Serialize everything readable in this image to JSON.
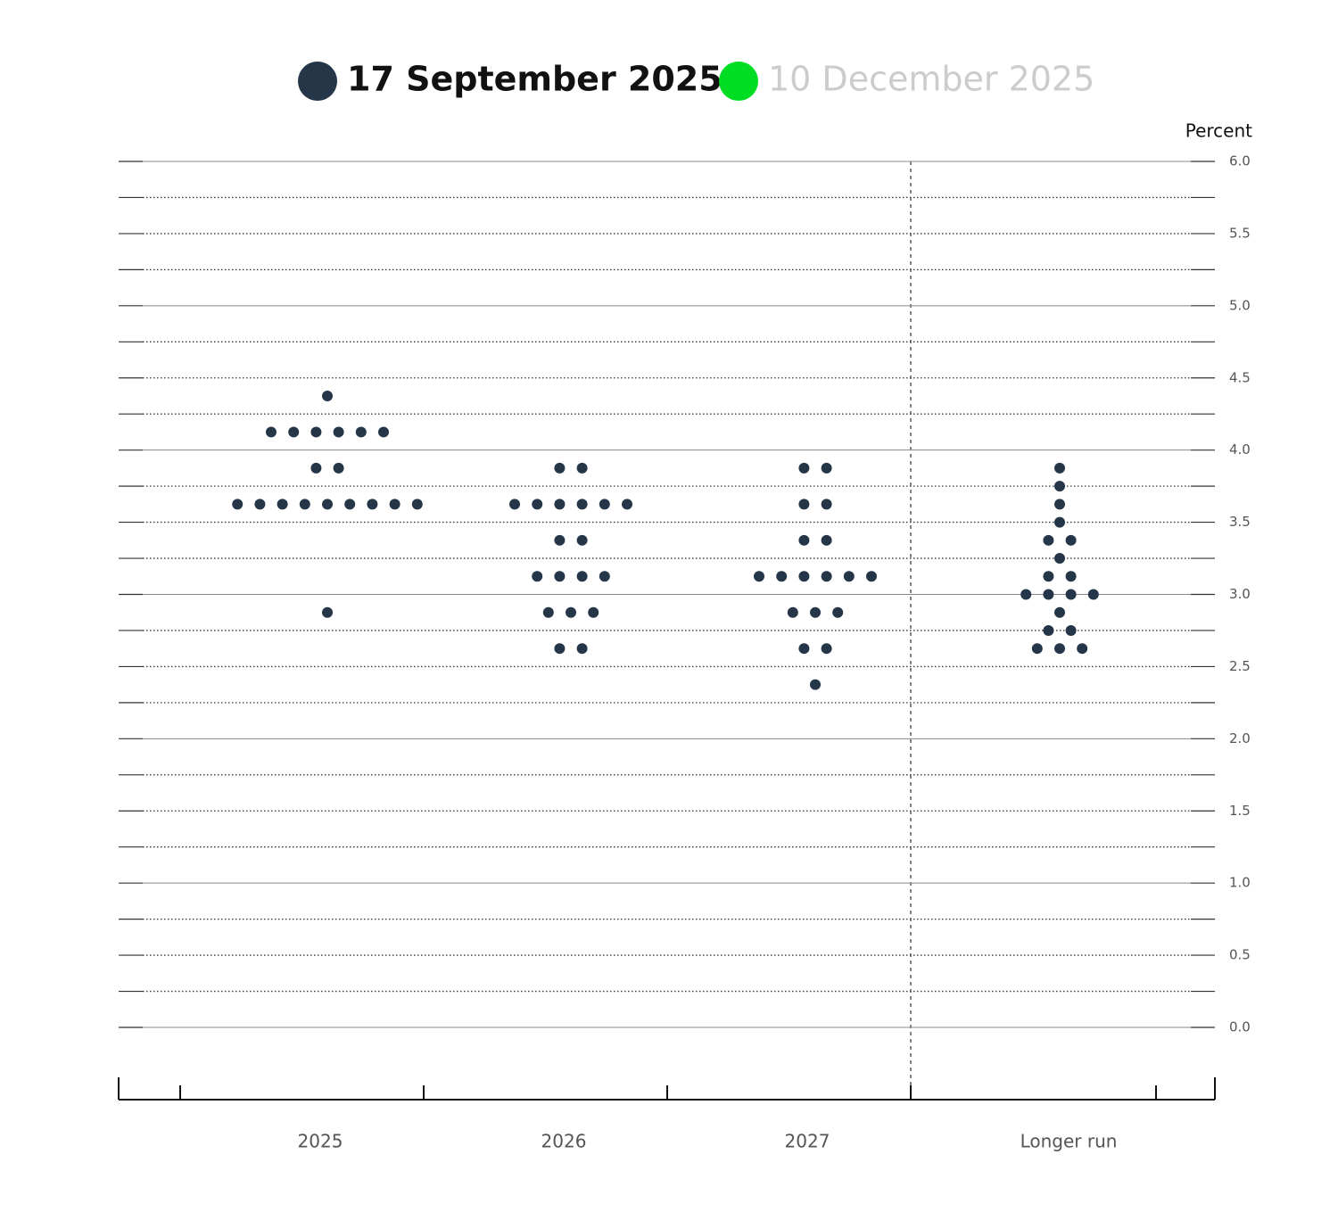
{
  "chart_data": {
    "type": "dot",
    "y_axis_label": "Percent",
    "categories": [
      "2025",
      "2026",
      "2027",
      "Longer run"
    ],
    "series": [
      {
        "name": "17 September 2025",
        "color": "#253649",
        "visible": true,
        "values": [
          [
            4.375,
            4.125,
            4.125,
            4.125,
            4.125,
            4.125,
            4.125,
            3.875,
            3.875,
            3.625,
            3.625,
            3.625,
            3.625,
            3.625,
            3.625,
            3.625,
            3.625,
            3.625,
            2.875
          ],
          [
            3.875,
            3.875,
            3.625,
            3.625,
            3.625,
            3.625,
            3.625,
            3.625,
            3.375,
            3.375,
            3.125,
            3.125,
            3.125,
            3.125,
            2.875,
            2.875,
            2.875,
            2.625,
            2.625
          ],
          [
            3.875,
            3.875,
            3.625,
            3.625,
            3.375,
            3.375,
            3.125,
            3.125,
            3.125,
            3.125,
            3.125,
            3.125,
            2.875,
            2.875,
            2.875,
            2.625,
            2.625,
            2.375
          ],
          [
            3.875,
            3.75,
            3.625,
            3.5,
            3.375,
            3.375,
            3.25,
            3.125,
            3.125,
            3.0,
            3.0,
            3.0,
            3.0,
            2.875,
            2.75,
            2.75,
            2.625,
            2.625,
            2.625
          ]
        ]
      },
      {
        "name": "10 December 2025",
        "color": "#00dd22",
        "visible": false
      }
    ],
    "ylim": [
      0,
      6
    ],
    "yticks": [
      {
        "value": 0,
        "label": "0.0"
      },
      {
        "value": 0.5,
        "label": "0.5"
      },
      {
        "value": 1,
        "label": "1.0"
      },
      {
        "value": 1.5,
        "label": "1.5"
      },
      {
        "value": 2,
        "label": "2.0"
      },
      {
        "value": 2.5,
        "label": "2.5"
      },
      {
        "value": 3,
        "label": "3.0"
      },
      {
        "value": 3.5,
        "label": "3.5"
      },
      {
        "value": 4,
        "label": "4.0"
      },
      {
        "value": 4.5,
        "label": "4.5"
      },
      {
        "value": 5,
        "label": "5.0"
      },
      {
        "value": 5.5,
        "label": "5.5"
      },
      {
        "value": 6,
        "label": "6.0"
      }
    ],
    "minor_yticks": [
      0.25,
      0.75,
      1.25,
      1.75,
      2.25,
      2.75,
      3.25,
      3.75,
      4.25,
      4.75,
      5.25,
      5.75
    ],
    "grid": true
  }
}
